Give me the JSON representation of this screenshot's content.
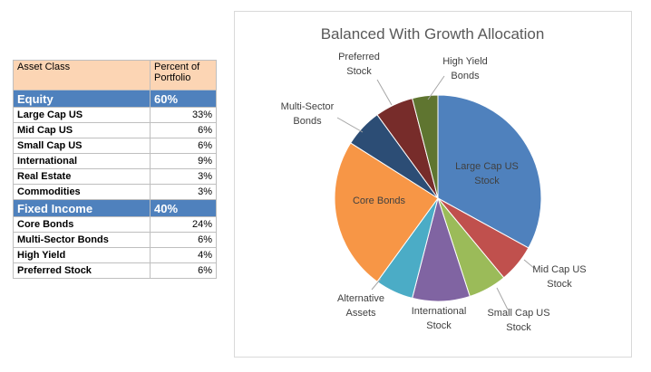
{
  "table": {
    "header": [
      "Asset Class",
      "Percent of Portfolio"
    ],
    "rows": [
      {
        "section": true,
        "cells": [
          "Equity",
          "60%"
        ]
      },
      {
        "cells": [
          "Large Cap US",
          "33%"
        ]
      },
      {
        "cells": [
          "Mid Cap US",
          "6%"
        ]
      },
      {
        "cells": [
          "Small Cap US",
          "6%"
        ]
      },
      {
        "cells": [
          "International",
          "9%"
        ]
      },
      {
        "cells": [
          "Real Estate",
          "3%"
        ]
      },
      {
        "cells": [
          "Commodities",
          "3%"
        ]
      },
      {
        "section": true,
        "cells": [
          "Fixed Income",
          "40%"
        ]
      },
      {
        "cells": [
          "Core Bonds",
          "24%"
        ]
      },
      {
        "cells": [
          "Multi-Sector Bonds",
          "6%"
        ]
      },
      {
        "cells": [
          "High Yield",
          "4%"
        ]
      },
      {
        "cells": [
          "Preferred Stock",
          "6%"
        ]
      }
    ]
  },
  "chart_data": {
    "type": "pie",
    "title": "Balanced With Growth Allocation",
    "categories": [
      "Large Cap US Stock",
      "Mid Cap US Stock",
      "Small Cap US Stock",
      "International Stock",
      "Alternative Assets",
      "Core Bonds",
      "Multi-Sector Bonds",
      "Preferred Stock",
      "High Yield Bonds"
    ],
    "values": [
      33,
      6,
      6,
      9,
      6,
      24,
      6,
      6,
      4
    ],
    "colors": [
      "#4f81bd",
      "#c0504d",
      "#9bbb59",
      "#8064a2",
      "#4bacc6",
      "#f79646",
      "#2c4d75",
      "#772c2a",
      "#5f7530"
    ]
  }
}
